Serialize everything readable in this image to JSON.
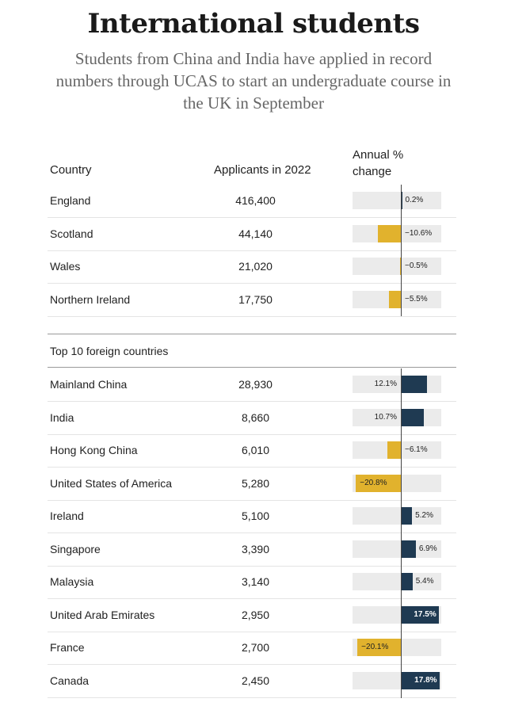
{
  "title": "International students",
  "subtitle": "Students from China and India have applied in record numbers through UCAS to start an undergraduate course in the UK in September",
  "headers": {
    "country": "Country",
    "applicants": "Applicants in 2022",
    "change": "Annual % change"
  },
  "section_label": "Top 10 foreign countries",
  "colors": {
    "positive": "#1f3a52",
    "negative": "#e1b22d",
    "track": "#ebebeb"
  },
  "chart_data": {
    "type": "table",
    "columns": [
      "Country",
      "Applicants in 2022",
      "Annual % change"
    ],
    "bar_range": [
      -22,
      22
    ],
    "uk_nations": [
      {
        "country": "England",
        "applicants": "416,400",
        "change": 0.2,
        "change_label": "0.2%"
      },
      {
        "country": "Scotland",
        "applicants": "44,140",
        "change": -10.6,
        "change_label": "−10.6%"
      },
      {
        "country": "Wales",
        "applicants": "21,020",
        "change": -0.5,
        "change_label": "−0.5%"
      },
      {
        "country": "Northern Ireland",
        "applicants": "17,750",
        "change": -5.5,
        "change_label": "−5.5%"
      }
    ],
    "top10_foreign": [
      {
        "country": "Mainland China",
        "applicants": "28,930",
        "change": 12.1,
        "change_label": "12.1%"
      },
      {
        "country": "India",
        "applicants": "8,660",
        "change": 10.7,
        "change_label": "10.7%"
      },
      {
        "country": "Hong Kong China",
        "applicants": "6,010",
        "change": -6.1,
        "change_label": "−6.1%"
      },
      {
        "country": "United States of America",
        "applicants": "5,280",
        "change": -20.8,
        "change_label": "−20.8%"
      },
      {
        "country": "Ireland",
        "applicants": "5,100",
        "change": 5.2,
        "change_label": "5.2%"
      },
      {
        "country": "Singapore",
        "applicants": "3,390",
        "change": 6.9,
        "change_label": "6.9%"
      },
      {
        "country": "Malaysia",
        "applicants": "3,140",
        "change": 5.4,
        "change_label": "5.4%"
      },
      {
        "country": "United Arab Emirates",
        "applicants": "2,950",
        "change": 17.5,
        "change_label": "17.5%"
      },
      {
        "country": "France",
        "applicants": "2,700",
        "change": -20.1,
        "change_label": "−20.1%"
      },
      {
        "country": "Canada",
        "applicants": "2,450",
        "change": 17.8,
        "change_label": "17.8%"
      }
    ]
  }
}
